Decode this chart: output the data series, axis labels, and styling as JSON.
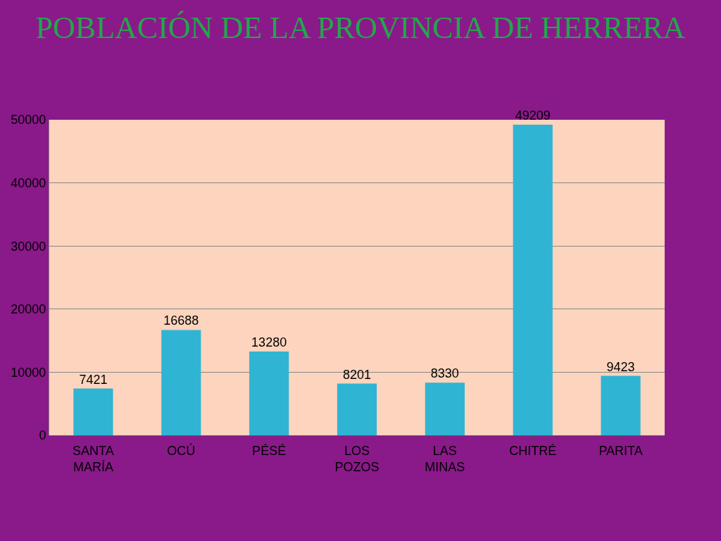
{
  "chart_data": {
    "type": "bar",
    "title": "POBLACIÓN DE LA PROVINCIA DE HERRERA",
    "categories": [
      "SANTA MARÍA",
      "OCÚ",
      "PÉSÉ",
      "LOS POZOS",
      "LAS MINAS",
      "CHITRÉ",
      "PARITA"
    ],
    "values": [
      7421,
      16688,
      13280,
      8201,
      8330,
      49209,
      9423
    ],
    "color": "#2fb4d4",
    "ylim": [
      0,
      50000
    ],
    "yticks": [
      0,
      10000,
      20000,
      30000,
      40000,
      50000
    ],
    "grid": "y",
    "data_labels": true
  }
}
